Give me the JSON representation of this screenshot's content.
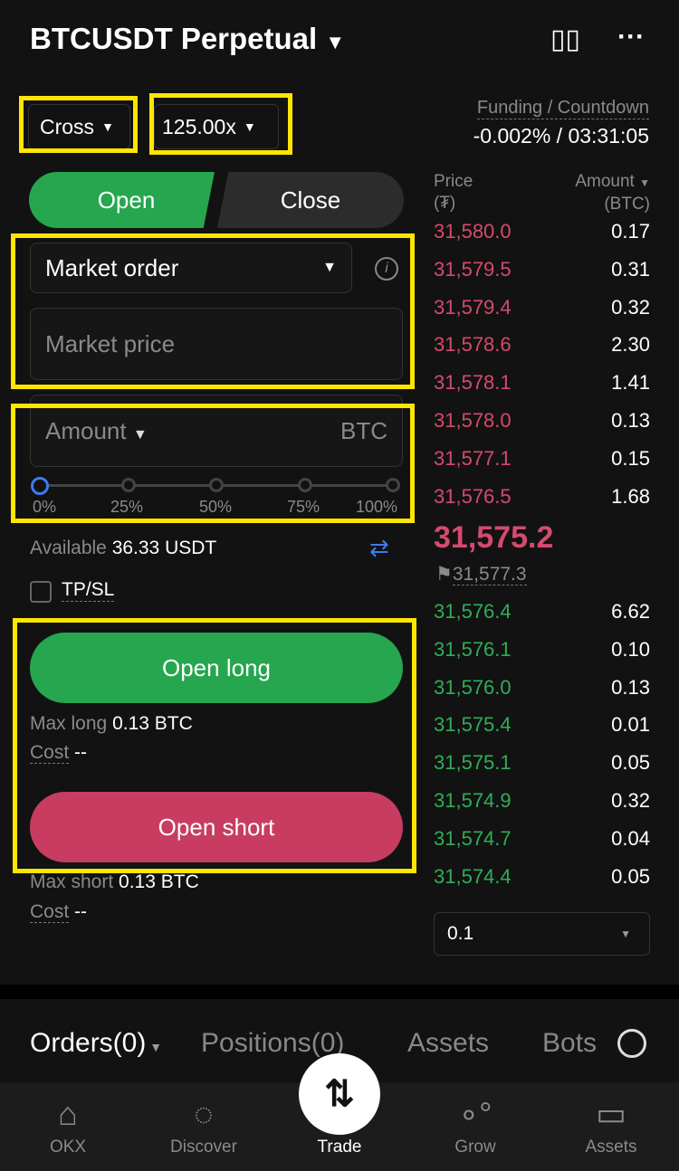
{
  "header": {
    "title": "BTCUSDT Perpetual",
    "chart_icon": "candlestick-icon",
    "more_icon": "more-icon"
  },
  "margin_mode": "Cross",
  "leverage": "125.00x",
  "funding": {
    "label": "Funding / Countdown",
    "value": "-0.002% / 03:31:05"
  },
  "side_tabs": {
    "open": "Open",
    "close": "Close"
  },
  "order_type": "Market order",
  "price_placeholder": "Market price",
  "amount": {
    "label": "Amount",
    "unit": "BTC"
  },
  "slider": {
    "value_percent": 0,
    "marks": [
      "0%",
      "25%",
      "50%",
      "75%",
      "100%"
    ]
  },
  "available": {
    "label": "Available",
    "value": "36.33 USDT"
  },
  "tpsl": {
    "label": "TP/SL",
    "checked": false
  },
  "open_long": {
    "label": "Open long",
    "max_label": "Max long",
    "max_value": "0.13 BTC",
    "cost_label": "Cost",
    "cost_value": "--"
  },
  "open_short": {
    "label": "Open short",
    "max_label": "Max short",
    "max_value": "0.13 BTC",
    "cost_label": "Cost",
    "cost_value": "--"
  },
  "orderbook": {
    "price_header": "Price",
    "price_unit": "(₮)",
    "amount_header": "Amount",
    "amount_unit": "(BTC)",
    "asks": [
      [
        "31,580.0",
        "0.17"
      ],
      [
        "31,579.5",
        "0.31"
      ],
      [
        "31,579.4",
        "0.32"
      ],
      [
        "31,578.6",
        "2.30"
      ],
      [
        "31,578.1",
        "1.41"
      ],
      [
        "31,578.0",
        "0.13"
      ],
      [
        "31,577.1",
        "0.15"
      ],
      [
        "31,576.5",
        "1.68"
      ]
    ],
    "last_price": "31,575.2",
    "mark_price": "31,577.3",
    "bids": [
      [
        "31,576.4",
        "6.62"
      ],
      [
        "31,576.1",
        "0.10"
      ],
      [
        "31,576.0",
        "0.13"
      ],
      [
        "31,575.4",
        "0.01"
      ],
      [
        "31,575.1",
        "0.05"
      ],
      [
        "31,574.9",
        "0.32"
      ],
      [
        "31,574.7",
        "0.04"
      ],
      [
        "31,574.4",
        "0.05"
      ]
    ],
    "depth": "0.1"
  },
  "bottom_tabs": [
    "Orders(0)",
    "Positions(0)",
    "Assets",
    "Bots"
  ],
  "nav": [
    "OKX",
    "Discover",
    "Trade",
    "Grow",
    "Assets"
  ],
  "colors": {
    "green": "#26a64f",
    "red": "#c83c62",
    "highlight": "#ffe600"
  }
}
